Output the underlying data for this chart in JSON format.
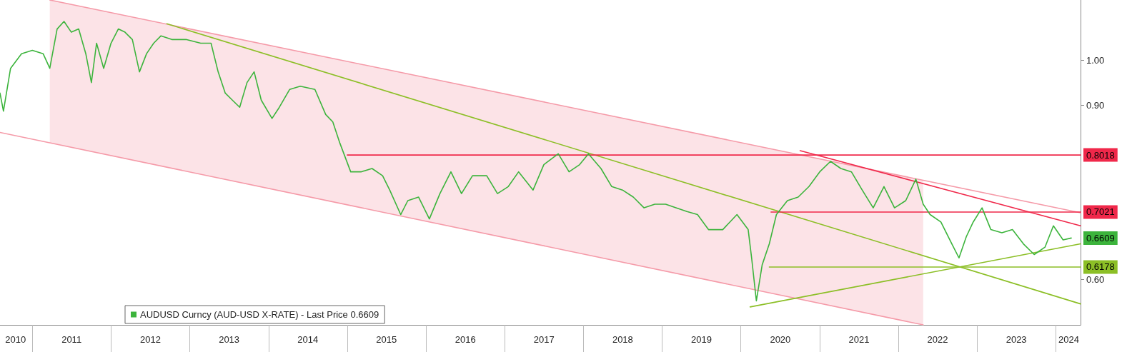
{
  "chart_data": {
    "type": "line",
    "log": "y",
    "grid": false,
    "legend": "bottom left",
    "marker": "none",
    "line_style": "solid",
    "xlim": [
      "2010-08-04",
      "2024-04-25"
    ],
    "ylim": [
      0.54,
      1.15
    ],
    "yticks": [
      {
        "value": 0.6,
        "label": "0.60"
      },
      {
        "value": 0.9,
        "label": "0.90"
      },
      {
        "value": 1.0,
        "label": "1.00"
      }
    ],
    "xticks": [
      {
        "value": "2010-10-15",
        "label": "2010"
      },
      {
        "value": "2011-01-01",
        "label": null
      },
      {
        "value": "2011-07-02",
        "label": "2011"
      },
      {
        "value": "2012-01-01",
        "label": null
      },
      {
        "value": "2012-07-02",
        "label": "2012"
      },
      {
        "value": "2013-01-01",
        "label": null
      },
      {
        "value": "2013-07-02",
        "label": "2013"
      },
      {
        "value": "2014-01-01",
        "label": null
      },
      {
        "value": "2014-07-02",
        "label": "2014"
      },
      {
        "value": "2015-01-01",
        "label": null
      },
      {
        "value": "2015-07-02",
        "label": "2015"
      },
      {
        "value": "2016-01-01",
        "label": null
      },
      {
        "value": "2016-07-02",
        "label": "2016"
      },
      {
        "value": "2017-01-01",
        "label": null
      },
      {
        "value": "2017-07-02",
        "label": "2017"
      },
      {
        "value": "2018-01-01",
        "label": null
      },
      {
        "value": "2018-07-02",
        "label": "2018"
      },
      {
        "value": "2019-01-01",
        "label": null
      },
      {
        "value": "2019-07-02",
        "label": "2019"
      },
      {
        "value": "2020-01-01",
        "label": null
      },
      {
        "value": "2020-07-02",
        "label": "2020"
      },
      {
        "value": "2021-01-01",
        "label": null
      },
      {
        "value": "2021-07-02",
        "label": "2021"
      },
      {
        "value": "2022-01-01",
        "label": null
      },
      {
        "value": "2022-07-02",
        "label": "2022"
      },
      {
        "value": "2023-01-01",
        "label": null
      },
      {
        "value": "2023-07-02",
        "label": "2023"
      },
      {
        "value": "2024-01-01",
        "label": null
      },
      {
        "value": "2024-03-01",
        "label": "2024"
      }
    ],
    "series": [
      {
        "color": "#f59aa8",
        "x": [
          "2011-03-23",
          "2022-04-26",
          "2024-04-25"
        ],
        "values": [
          1.15,
          0.756,
          0.701
        ],
        "upper": [
          1.15,
          0.756,
          null
        ],
        "lower": [
          0.825,
          0.54,
          null
        ]
      },
      {
        "color": "#f59aa8",
        "x": [
          "2010-08-04",
          "2022-04-26"
        ],
        "values": [
          0.845,
          0.54
        ]
      },
      {
        "color": "#8cbf26",
        "x": [
          "2012-09-16",
          "2024-04-25"
        ],
        "values": [
          1.088,
          0.567
        ]
      },
      {
        "color": "#8cbf26",
        "x": [
          "2020-02-13",
          "2024-04-25"
        ],
        "values": [
          0.563,
          0.652
        ]
      },
      {
        "color": "#f0284a",
        "x": [
          "2020-10-02",
          "2024-04-25"
        ],
        "values": [
          0.81,
          0.68
        ]
      },
      {
        "color": "#f0284a",
        "x": [
          "2015-01-01",
          "2024-04-25"
        ],
        "values": [
          0.8018,
          0.8018
        ],
        "value_labels": [
          null,
          "0.8018"
        ]
      },
      {
        "color": "#f0284a",
        "x": [
          "2020-05-20",
          "2024-04-25"
        ],
        "values": [
          0.7021,
          0.7021
        ],
        "value_labels": [
          null,
          "0.7021"
        ]
      },
      {
        "color": "#8cbf26",
        "x": [
          "2020-05-12",
          "2024-04-25"
        ],
        "values": [
          0.6178,
          0.6178
        ],
        "value_labels": [
          null,
          "0.6178"
        ]
      },
      {
        "name": "AUDUSD Curncy (AUD-USD X-RATE) - Last Price 0.6609",
        "color": "#3cb43c",
        "x": [
          "2010-08-04",
          "2010-08-20",
          "2010-09-22",
          "2010-11-12",
          "2011-01-01",
          "2011-02-20",
          "2011-03-23",
          "2011-04-26",
          "2011-05-28",
          "2011-07-01",
          "2011-08-04",
          "2011-09-06",
          "2011-10-02",
          "2011-10-26",
          "2011-11-28",
          "2012-01-01",
          "2012-02-04",
          "2012-03-06",
          "2012-04-09",
          "2012-05-12",
          "2012-06-14",
          "2012-07-17",
          "2012-08-20",
          "2012-10-09",
          "2012-12-14",
          "2013-02-20",
          "2013-04-09",
          "2013-05-12",
          "2013-06-14",
          "2013-07-17",
          "2013-08-20",
          "2013-09-23",
          "2013-10-26",
          "2013-11-28",
          "2014-01-17",
          "2014-02-20",
          "2014-04-09",
          "2014-05-28",
          "2014-08-04",
          "2014-09-23",
          "2014-10-26",
          "2014-11-28",
          "2015-01-17",
          "2015-03-06",
          "2015-04-26",
          "2015-06-14",
          "2015-07-17",
          "2015-09-06",
          "2015-10-09",
          "2015-11-28",
          "2016-01-17",
          "2016-03-06",
          "2016-04-26",
          "2016-06-14",
          "2016-08-04",
          "2016-10-09",
          "2016-11-28",
          "2017-01-17",
          "2017-03-06",
          "2017-05-12",
          "2017-07-01",
          "2017-09-06",
          "2017-10-26",
          "2017-12-14",
          "2018-01-24",
          "2018-03-23",
          "2018-05-12",
          "2018-07-01",
          "2018-08-20",
          "2018-10-09",
          "2018-11-28",
          "2019-01-17",
          "2019-03-06",
          "2019-04-26",
          "2019-06-14",
          "2019-08-04",
          "2019-10-09",
          "2019-12-14",
          "2020-02-04",
          "2020-02-20",
          "2020-03-13",
          "2020-04-09",
          "2020-05-12",
          "2020-06-14",
          "2020-08-04",
          "2020-09-23",
          "2020-11-12",
          "2021-01-01",
          "2021-02-20",
          "2021-04-09",
          "2021-05-28",
          "2021-07-17",
          "2021-09-06",
          "2021-10-26",
          "2021-12-14",
          "2022-02-04",
          "2022-03-23",
          "2022-04-26",
          "2022-05-28",
          "2022-07-17",
          "2022-09-06",
          "2022-10-09",
          "2022-11-12",
          "2022-12-14",
          "2023-01-24",
          "2023-03-06",
          "2023-04-26",
          "2023-06-14",
          "2023-08-04",
          "2023-09-23",
          "2023-11-12",
          "2023-12-21",
          "2024-02-04",
          "2024-03-13"
        ],
        "values": [
          0.926,
          0.888,
          0.981,
          1.015,
          1.023,
          1.015,
          0.981,
          1.075,
          1.094,
          1.067,
          1.075,
          1.015,
          0.949,
          1.04,
          0.981,
          1.04,
          1.075,
          1.067,
          1.049,
          0.973,
          1.015,
          1.04,
          1.058,
          1.049,
          1.049,
          1.04,
          1.04,
          0.973,
          0.926,
          0.911,
          0.896,
          0.949,
          0.973,
          0.911,
          0.873,
          0.896,
          0.934,
          0.941,
          0.934,
          0.881,
          0.866,
          0.824,
          0.771,
          0.771,
          0.777,
          0.764,
          0.739,
          0.698,
          0.721,
          0.727,
          0.691,
          0.733,
          0.771,
          0.733,
          0.764,
          0.764,
          0.733,
          0.745,
          0.771,
          0.739,
          0.784,
          0.804,
          0.771,
          0.784,
          0.804,
          0.777,
          0.745,
          0.739,
          0.727,
          0.709,
          0.715,
          0.715,
          0.709,
          0.703,
          0.698,
          0.674,
          0.674,
          0.698,
          0.674,
          0.631,
          0.571,
          0.621,
          0.652,
          0.698,
          0.721,
          0.727,
          0.745,
          0.771,
          0.79,
          0.777,
          0.771,
          0.739,
          0.709,
          0.745,
          0.709,
          0.721,
          0.758,
          0.715,
          0.698,
          0.686,
          0.652,
          0.631,
          0.663,
          0.686,
          0.709,
          0.674,
          0.669,
          0.674,
          0.652,
          0.636,
          0.647,
          0.68,
          0.658,
          0.6609
        ],
        "value_labels": [
          null,
          null,
          null,
          null,
          null,
          null,
          null,
          null,
          null,
          null,
          null,
          null,
          null,
          null,
          null,
          null,
          null,
          null,
          null,
          null,
          null,
          null,
          null,
          null,
          null,
          null,
          null,
          null,
          null,
          null,
          null,
          null,
          null,
          null,
          null,
          null,
          null,
          null,
          null,
          null,
          null,
          null,
          null,
          null,
          null,
          null,
          null,
          null,
          null,
          null,
          null,
          null,
          null,
          null,
          null,
          null,
          null,
          null,
          null,
          null,
          null,
          null,
          null,
          null,
          null,
          null,
          null,
          null,
          null,
          null,
          null,
          null,
          null,
          null,
          null,
          null,
          null,
          null,
          null,
          null,
          null,
          null,
          null,
          null,
          null,
          null,
          null,
          null,
          null,
          null,
          null,
          null,
          null,
          null,
          null,
          null,
          null,
          null,
          null,
          null,
          null,
          null,
          null,
          null,
          null,
          null,
          null,
          null,
          null,
          null,
          null,
          null,
          null,
          "0.6609"
        ]
      }
    ]
  }
}
